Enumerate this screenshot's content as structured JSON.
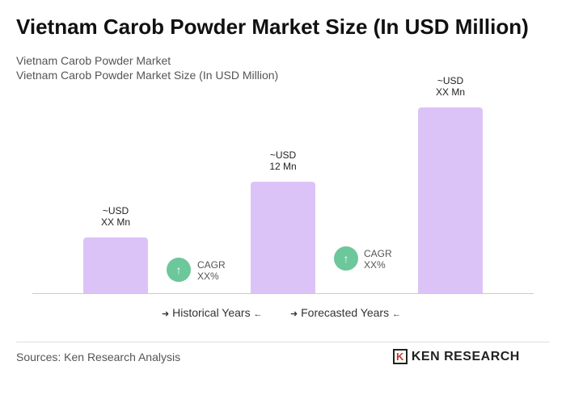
{
  "title": "Vietnam Carob Powder Market Size (In USD Million)",
  "subtitle": [
    "Vietnam Carob Powder Market",
    "Vietnam Carob Powder Market Size (In USD Million)"
  ],
  "chart_data": {
    "type": "bar",
    "categories": [
      null,
      null,
      null
    ],
    "values": [
      6,
      12,
      20
    ],
    "value_labels": [
      "~USD\nXX Mn",
      "~USD\n12 Mn",
      "~USD\nXX Mn"
    ],
    "color": "#dcc3f7"
  },
  "cagr": [
    {
      "label": "CAGR",
      "value": "XX%"
    },
    {
      "label": "CAGR",
      "value": "XX%"
    }
  ],
  "legend": [
    "Historical Years",
    "Forecasted Years"
  ],
  "footer": {
    "source": "Sources: Ken Research Analysis",
    "logo": "KEN RESEARCH"
  }
}
